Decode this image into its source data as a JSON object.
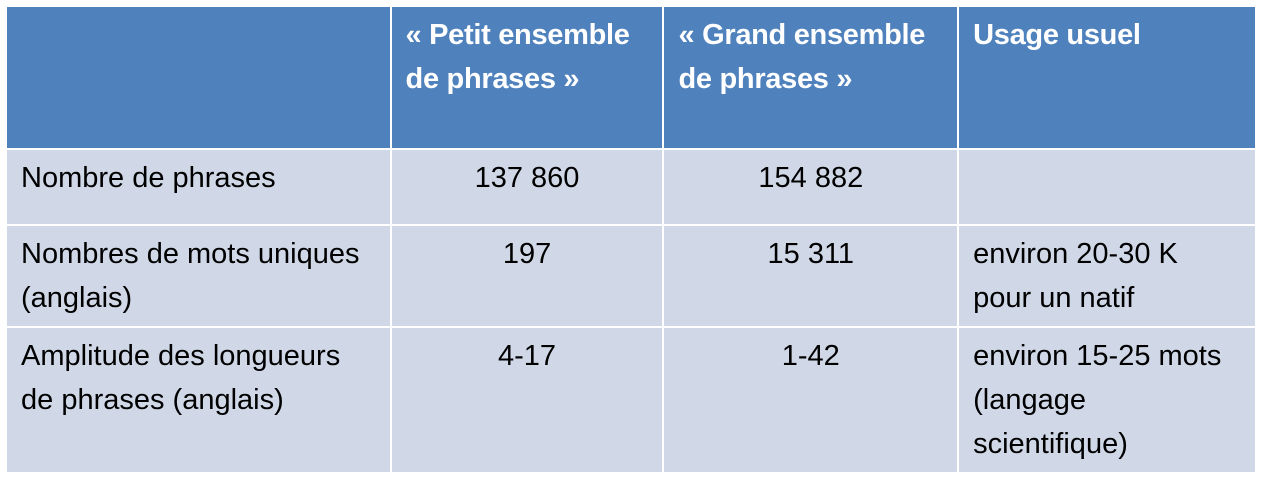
{
  "table": {
    "headers": [
      "",
      "« Petit ensemble de phrases »",
      "« Grand ensemble de phrases »",
      "Usage usuel"
    ],
    "rows": [
      [
        "Nombre de phrases",
        "137 860",
        "154 882",
        ""
      ],
      [
        "Nombres de mots uniques (anglais)",
        "197",
        "15 311",
        "environ 20-30 K pour un natif"
      ],
      [
        "Amplitude des longueurs de phrases (anglais)",
        "4-17",
        "1-42",
        "environ 15-25 mots (langage scientifique)"
      ]
    ]
  },
  "colors": {
    "header_bg": "#4f81bd",
    "body_bg": "#d0d8e8",
    "grid": "#ffffff"
  }
}
